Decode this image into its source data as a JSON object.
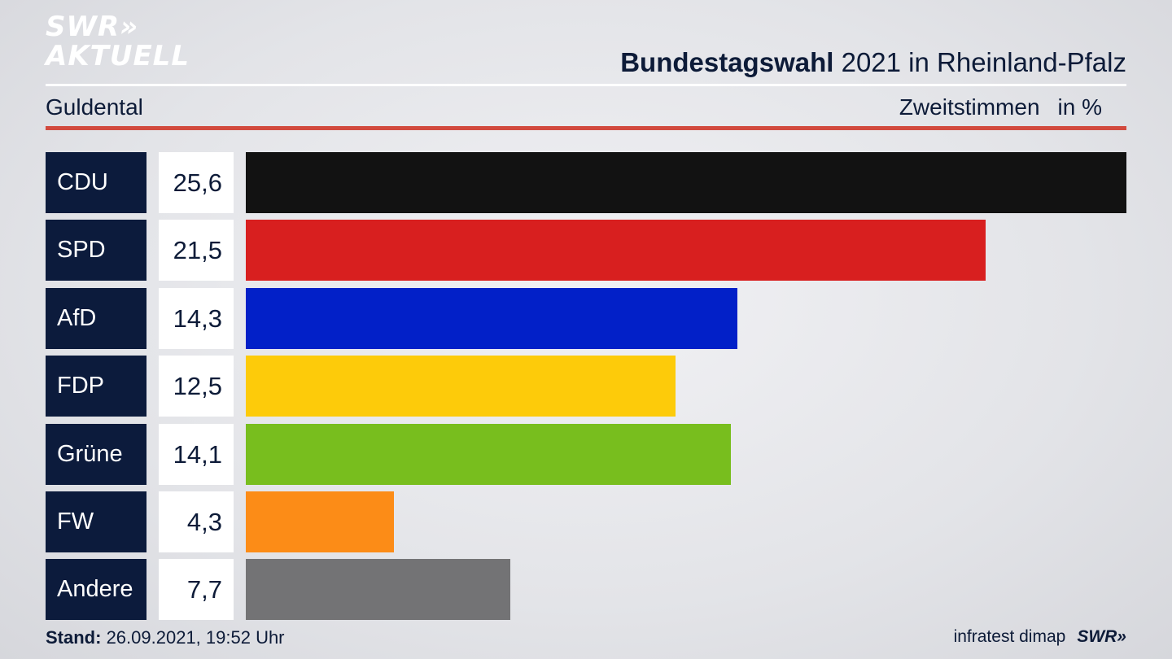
{
  "logo": {
    "line1": "SWR",
    "line1_mark": "»",
    "line2": "AKTUELL"
  },
  "header": {
    "title_bold": "Bundestagswahl",
    "title_rest": " 2021 in Rheinland-Pfalz",
    "region": "Guldental",
    "measure": "Zweitstimmen",
    "unit": "in %"
  },
  "chart_data": {
    "type": "bar",
    "orientation": "horizontal",
    "categories": [
      "CDU",
      "SPD",
      "AfD",
      "FDP",
      "Grüne",
      "FW",
      "Andere"
    ],
    "values": [
      25.6,
      21.5,
      14.3,
      12.5,
      14.1,
      4.3,
      7.7
    ],
    "value_labels": [
      "25,6",
      "21,5",
      "14,3",
      "12,5",
      "14,1",
      "4,3",
      "7,7"
    ],
    "colors": [
      "#121212",
      "#d81f1f",
      "#0220c8",
      "#fdcb0a",
      "#78be1e",
      "#fc8c17",
      "#737375"
    ],
    "title": "Bundestagswahl 2021 in Rheinland-Pfalz",
    "ylabel": "Zweitstimmen in %"
  },
  "footer": {
    "stand_label": "Stand:",
    "stand_value": " 26.09.2021, 19:52 Uhr",
    "source": "infratest dimap",
    "brand": "SWR»"
  }
}
